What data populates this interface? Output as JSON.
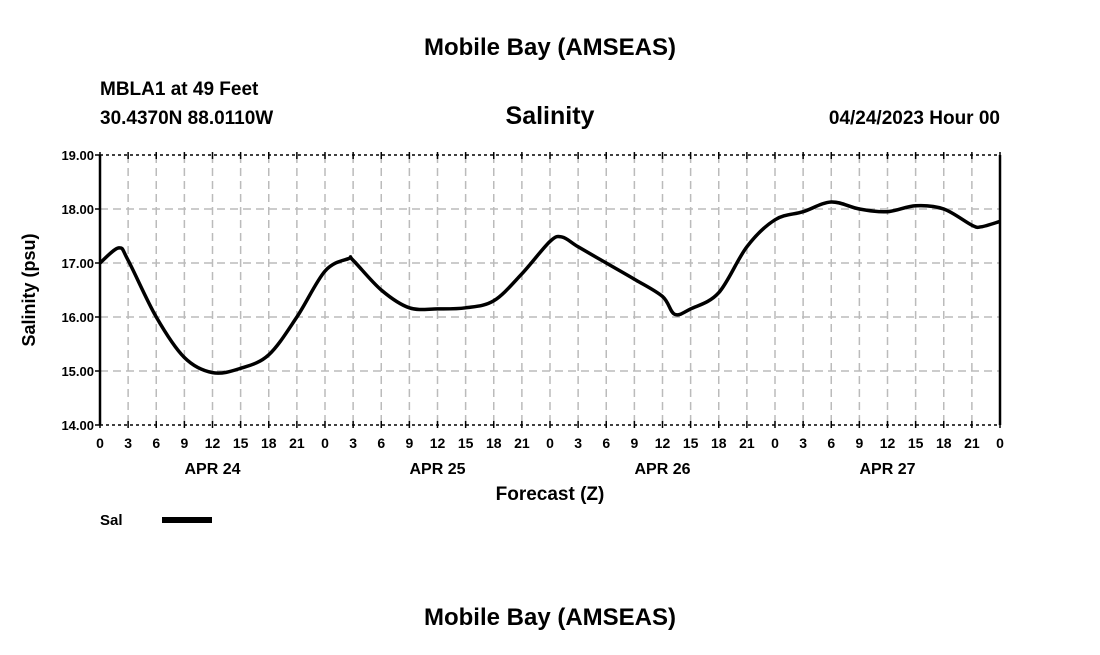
{
  "header": {
    "title": "Mobile Bay (AMSEAS)",
    "station": "MBLA1 at 49 Feet",
    "coords": "30.4370N  88.0110W",
    "variable": "Salinity",
    "datetime": "04/24/2023 Hour 00"
  },
  "footer": {
    "title": "Mobile Bay (AMSEAS)"
  },
  "chart_data": {
    "type": "line",
    "title": "Salinity",
    "xlabel": "Forecast (Z)",
    "ylabel": "Salinity (psu)",
    "ylim": [
      14,
      19
    ],
    "xlim": [
      0,
      96
    ],
    "yticks": [
      "14.00",
      "15.00",
      "16.00",
      "17.00",
      "18.00",
      "19.00"
    ],
    "xtick_labels": [
      "0",
      "3",
      "6",
      "9",
      "12",
      "15",
      "18",
      "21",
      "0",
      "3",
      "6",
      "9",
      "12",
      "15",
      "18",
      "21",
      "0",
      "3",
      "6",
      "9",
      "12",
      "15",
      "18",
      "21",
      "0",
      "3",
      "6",
      "9",
      "12",
      "15",
      "18",
      "21",
      "0"
    ],
    "day_labels": [
      "APR 24",
      "APR 25",
      "APR 26",
      "APR 27"
    ],
    "grid": true,
    "legend": {
      "position": "bottom-left",
      "entries": [
        "Sal"
      ]
    },
    "series": [
      {
        "name": "Sal",
        "x": [
          0,
          2,
          3,
          6,
          9,
          12,
          15,
          18,
          21,
          24,
          26.5,
          27,
          30,
          33,
          36,
          39,
          42,
          45,
          48,
          49.3,
          51,
          54,
          57,
          60,
          61.3,
          63,
          66,
          69,
          72,
          75,
          78,
          81,
          84,
          87,
          90,
          93,
          94,
          96
        ],
        "y": [
          17.0,
          17.28,
          17.05,
          16.0,
          15.25,
          14.97,
          15.05,
          15.3,
          16.0,
          16.85,
          17.08,
          17.05,
          16.5,
          16.17,
          16.15,
          16.17,
          16.3,
          16.8,
          17.4,
          17.48,
          17.3,
          17.0,
          16.7,
          16.38,
          16.05,
          16.15,
          16.45,
          17.3,
          17.8,
          17.95,
          18.13,
          18.0,
          17.95,
          18.06,
          18.0,
          17.7,
          17.67,
          17.77
        ]
      }
    ]
  }
}
